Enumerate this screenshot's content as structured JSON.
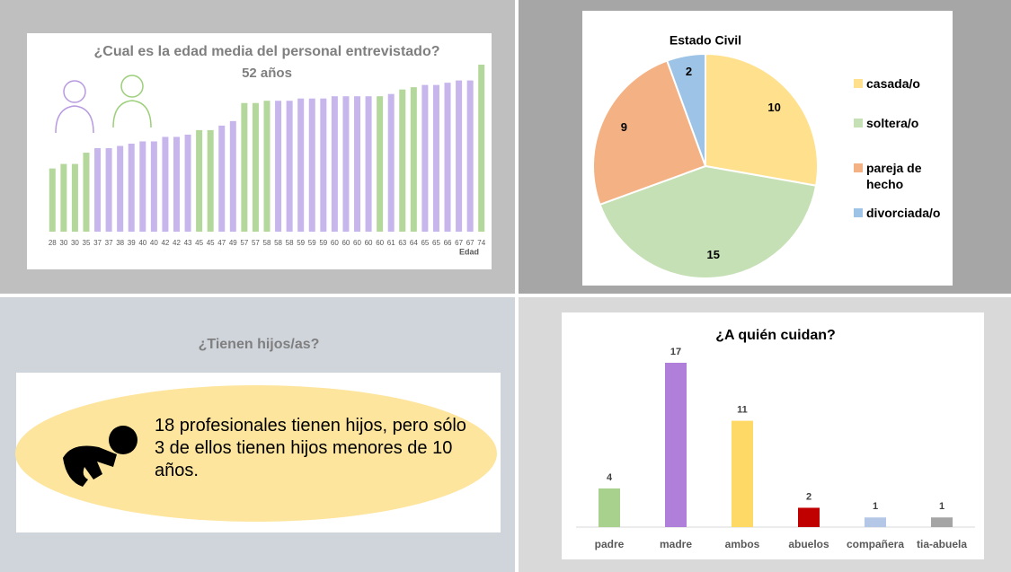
{
  "chart_data": [
    {
      "type": "bar",
      "title": "¿Cual es la edad media del personal entrevistado?",
      "subtitle": "52 años",
      "x_label": "Edad",
      "categories": [
        "28",
        "30",
        "30",
        "35",
        "37",
        "37",
        "38",
        "39",
        "40",
        "40",
        "42",
        "42",
        "43",
        "45",
        "45",
        "47",
        "49",
        "57",
        "57",
        "58",
        "58",
        "58",
        "59",
        "59",
        "59",
        "60",
        "60",
        "60",
        "60",
        "60",
        "61",
        "63",
        "64",
        "65",
        "65",
        "66",
        "67",
        "67",
        "74"
      ],
      "values": [
        28,
        30,
        30,
        35,
        37,
        37,
        38,
        39,
        40,
        40,
        42,
        42,
        43,
        45,
        45,
        47,
        49,
        57,
        57,
        58,
        58,
        58,
        59,
        59,
        59,
        60,
        60,
        60,
        60,
        60,
        61,
        63,
        64,
        65,
        65,
        66,
        67,
        67,
        74
      ],
      "colors": [
        "#b4d79b",
        "#b4d79b",
        "#b4d79b",
        "#b4d79b",
        "#c7b6ec",
        "#c7b6ec",
        "#c7b6ec",
        "#c7b6ec",
        "#c7b6ec",
        "#c7b6ec",
        "#c7b6ec",
        "#c7b6ec",
        "#c7b6ec",
        "#b4d79b",
        "#b4d79b",
        "#c7b6ec",
        "#c7b6ec",
        "#b4d79b",
        "#b4d79b",
        "#b4d79b",
        "#c7b6ec",
        "#c7b6ec",
        "#c7b6ec",
        "#c7b6ec",
        "#c7b6ec",
        "#c7b6ec",
        "#c7b6ec",
        "#c7b6ec",
        "#c7b6ec",
        "#b4d79b",
        "#c7b6ec",
        "#b4d79b",
        "#b4d79b",
        "#c7b6ec",
        "#c7b6ec",
        "#c7b6ec",
        "#c7b6ec",
        "#c7b6ec",
        "#b4d79b"
      ],
      "ylim": [
        0,
        74
      ]
    },
    {
      "type": "pie",
      "title": "Estado Civil",
      "categories": [
        "casada/o",
        "soltera/o",
        "pareja de hecho",
        "divorciada/o"
      ],
      "values": [
        10,
        15,
        9,
        2
      ],
      "colors": [
        "#ffe08c",
        "#c5e0b4",
        "#f4b183",
        "#9dc3e6"
      ],
      "legend": "right"
    },
    {
      "type": "bar",
      "title": "¿A quién cuidan?",
      "categories": [
        "padre",
        "madre",
        "ambos",
        "abuelos",
        "compañera",
        "tia-abuela"
      ],
      "values": [
        4,
        17,
        11,
        2,
        1,
        1
      ],
      "colors": [
        "#a9d18e",
        "#b07fd9",
        "#ffd966",
        "#c00000",
        "#b4c7e7",
        "#a5a5a5"
      ],
      "ylim": [
        0,
        17
      ],
      "data_labels": true
    }
  ],
  "info": {
    "title": "¿Tienen hijos/as?",
    "text": "18 profesionales tienen hijos, pero sólo 3 de ellos tienen hijos menores de 10 años."
  }
}
